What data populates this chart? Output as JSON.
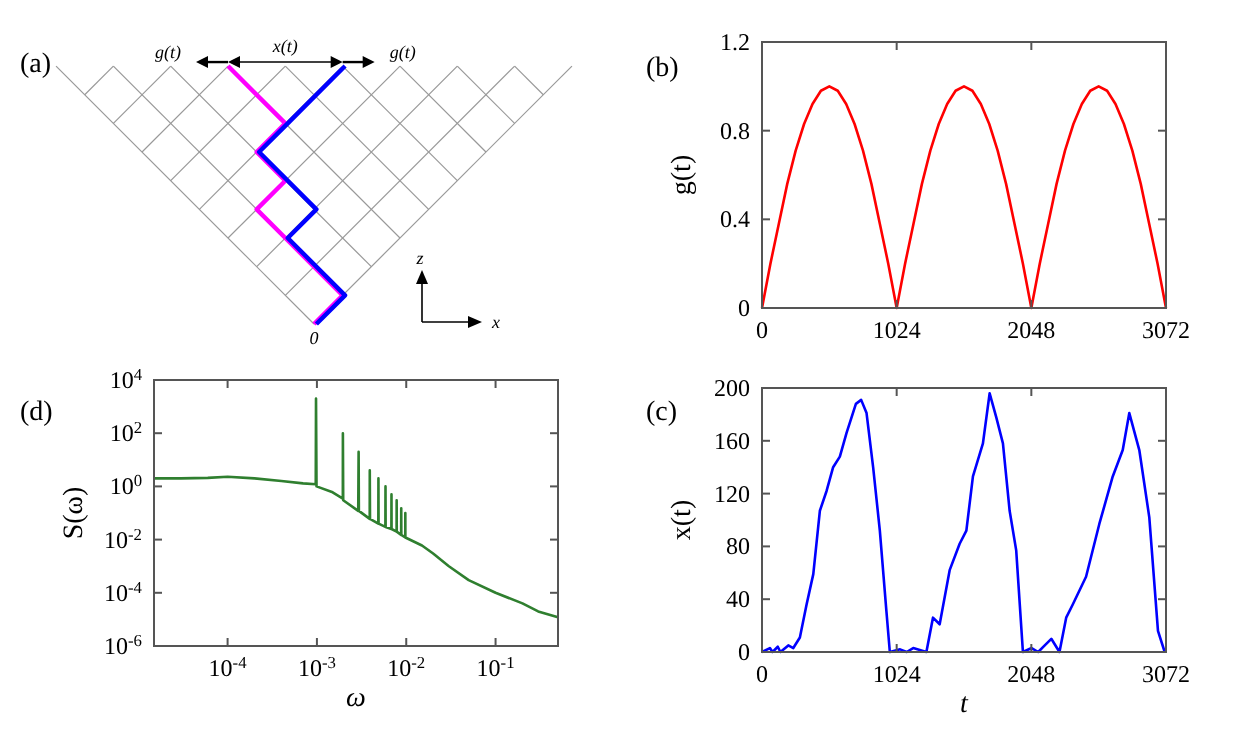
{
  "chart_data": [
    {
      "type": "other",
      "title": "(a)",
      "annotations": [
        "g(t)",
        "x(t)",
        "g(t)",
        "z",
        "x",
        "0"
      ]
    },
    {
      "type": "line",
      "title": "(b)",
      "ylabel": "g(t)",
      "xlim": [
        0,
        3072
      ],
      "ylim": [
        0,
        1.2
      ],
      "xticks": [
        0,
        1024,
        2048,
        3072
      ],
      "yticks": [
        0,
        0.4,
        0.8,
        1.2
      ],
      "grid": false,
      "series": [
        {
          "color": "#ff0000",
          "x": [
            0,
            64,
            128,
            192,
            256,
            320,
            384,
            448,
            512,
            576,
            640,
            704,
            768,
            832,
            896,
            960,
            1024,
            1088,
            1152,
            1216,
            1280,
            1344,
            1408,
            1472,
            1536,
            1600,
            1664,
            1728,
            1792,
            1856,
            1920,
            1984,
            2048,
            2112,
            2176,
            2240,
            2304,
            2368,
            2432,
            2496,
            2560,
            2624,
            2688,
            2752,
            2816,
            2880,
            2944,
            3008,
            3072
          ],
          "values": [
            0,
            0.2,
            0.38,
            0.56,
            0.71,
            0.83,
            0.92,
            0.98,
            1,
            0.98,
            0.92,
            0.83,
            0.71,
            0.56,
            0.38,
            0.2,
            0,
            0.2,
            0.38,
            0.56,
            0.71,
            0.83,
            0.92,
            0.98,
            1,
            0.98,
            0.92,
            0.83,
            0.71,
            0.56,
            0.38,
            0.2,
            0,
            0.2,
            0.38,
            0.56,
            0.71,
            0.83,
            0.92,
            0.98,
            1,
            0.98,
            0.92,
            0.83,
            0.71,
            0.56,
            0.38,
            0.2,
            0
          ]
        }
      ]
    },
    {
      "type": "line",
      "title": "(d)",
      "xlabel": "ω",
      "ylabel": "S(ω)",
      "log": "xy",
      "xlim": [
        1.5e-05,
        0.5
      ],
      "ylim": [
        1e-06,
        10000
      ],
      "grid": false,
      "xticks": [
        {
          "value": 0.0001,
          "label": "10$^{-4}$"
        },
        {
          "value": 0.001,
          "label": "10$^{-3}$"
        },
        {
          "value": 0.01,
          "label": "10$^{-2}$"
        },
        {
          "value": 0.1,
          "label": "10$^{-1}$"
        }
      ],
      "yticks": [
        {
          "value": 1e-06,
          "label": "10$^{-6}$"
        },
        {
          "value": 0.0001,
          "label": "10$^{-4}$"
        },
        {
          "value": 0.01,
          "label": "10$^{-2}$"
        },
        {
          "value": 1,
          "label": "10$^{0}$"
        },
        {
          "value": 100,
          "label": "10$^{2}$"
        },
        {
          "value": 10000,
          "label": "10$^{4}$"
        }
      ],
      "series": [
        {
          "color": "#2f7f2f",
          "x": [
            1.5e-05,
            3e-05,
            6e-05,
            0.0001,
            0.0002,
            0.0004,
            0.0007,
            0.00097,
            0.000977,
            0.00099,
            0.0015,
            0.00195,
            0.001953,
            0.00197,
            0.0029,
            0.00293,
            0.00295,
            0.0039,
            0.003906,
            0.00393,
            0.00487,
            0.004883,
            0.0049,
            0.00584,
            0.005859,
            0.00588,
            0.00682,
            0.006836,
            0.00685,
            0.0078,
            0.007813,
            0.00783,
            0.00877,
            0.008789,
            0.00881,
            0.00975,
            0.009766,
            0.00978,
            0.015,
            0.02,
            0.03,
            0.05,
            0.1,
            0.2,
            0.3,
            0.5
          ],
          "values": [
            2,
            2,
            2.1,
            2.3,
            2,
            1.6,
            1.3,
            1.2,
            2000,
            1,
            0.6,
            0.35,
            100,
            0.3,
            0.12,
            20,
            0.12,
            0.06,
            4,
            0.06,
            0.04,
            2,
            0.04,
            0.03,
            1,
            0.03,
            0.025,
            0.5,
            0.025,
            0.02,
            0.3,
            0.02,
            0.015,
            0.15,
            0.015,
            0.012,
            0.1,
            0.012,
            0.006,
            0.003,
            0.001,
            0.0003,
            0.0001,
            4e-05,
            2e-05,
            1.2e-05
          ]
        }
      ]
    },
    {
      "type": "line",
      "title": "(c)",
      "xlabel": "t",
      "ylabel": "x(t)",
      "xlim": [
        0,
        3072
      ],
      "ylim": [
        0,
        200
      ],
      "xticks": [
        0,
        1024,
        2048,
        3072
      ],
      "yticks": [
        0,
        40,
        80,
        120,
        160,
        200
      ],
      "grid": false,
      "series": [
        {
          "color": "#0000ff",
          "x": [
            0,
            60,
            80,
            120,
            140,
            200,
            238,
            288,
            339,
            390,
            440,
            491,
            541,
            592,
            643,
            714,
            754,
            795,
            845,
            896,
            946,
            972,
            1050,
            1100,
            1150,
            1250,
            1300,
            1351,
            1427,
            1503,
            1554,
            1604,
            1680,
            1731,
            1781,
            1832,
            1883,
            1933,
            1984,
            2050,
            2100,
            2150,
            2200,
            2262,
            2313,
            2363,
            2464,
            2565,
            2667,
            2743,
            2793,
            2869,
            2945,
            3011,
            3062
          ],
          "values": [
            0,
            3,
            0,
            4,
            0,
            5,
            3,
            11,
            36,
            59,
            107,
            122,
            140,
            148,
            166,
            188,
            191,
            181,
            140,
            92,
            31,
            0,
            2,
            0,
            3,
            0,
            26,
            21,
            62,
            82,
            92,
            133,
            158,
            196,
            178,
            158,
            107,
            77,
            0,
            3,
            0,
            5,
            10,
            0,
            26,
            36,
            57,
            97,
            133,
            153,
            181,
            153,
            102,
            16,
            0
          ]
        }
      ]
    }
  ]
}
